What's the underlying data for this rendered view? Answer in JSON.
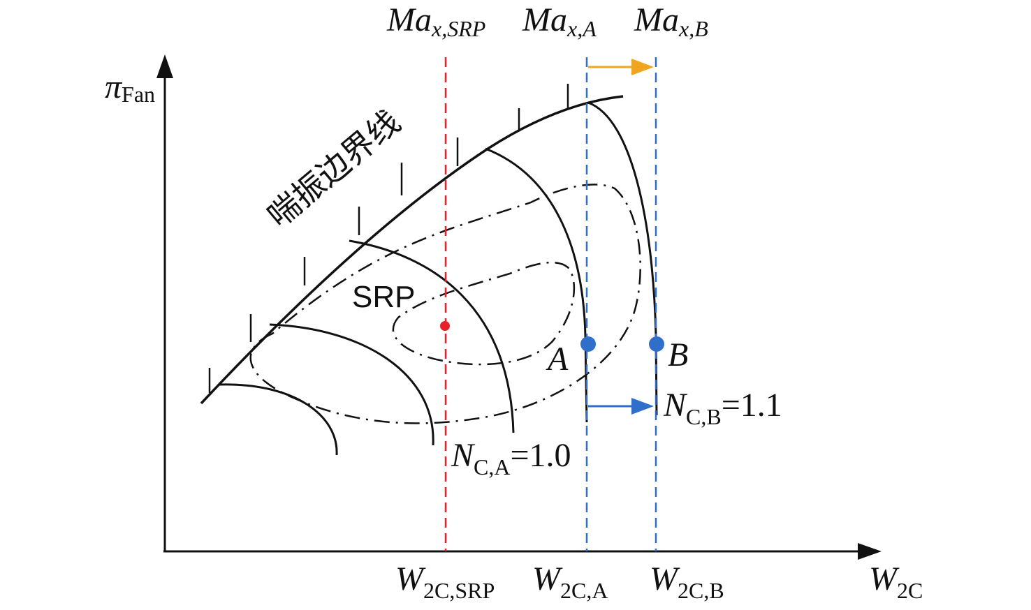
{
  "labels": {
    "y_axis": {
      "main": "π",
      "sub": "Fan"
    },
    "x_axis": {
      "main": "W",
      "sub": "2C"
    },
    "surge_line": "喘振边界线",
    "srp": "SRP",
    "point_a": "A",
    "point_b": "B",
    "top_srp": {
      "main": "Ma",
      "sub": "x,SRP"
    },
    "top_a": {
      "main": "Ma",
      "sub": "x,A"
    },
    "top_b": {
      "main": "Ma",
      "sub": "x,B"
    },
    "bottom_srp": {
      "main": "W",
      "sub": "2C,SRP"
    },
    "bottom_a": {
      "main": "W",
      "sub": "2C,A"
    },
    "bottom_b": {
      "main": "W",
      "sub": "2C,B"
    },
    "speed_a": {
      "main": "N",
      "sub": "C,A",
      "value": "=1.0"
    },
    "speed_b": {
      "main": "N",
      "sub": "C,B",
      "value": "=1.1"
    }
  },
  "colors": {
    "ink": "#111111",
    "srp_marker": "#e8202a",
    "op_marker": "#2f6ec9",
    "shift_arrow_top": "#f0a521",
    "shift_arrow_bottom": "#2f6ec9"
  }
}
